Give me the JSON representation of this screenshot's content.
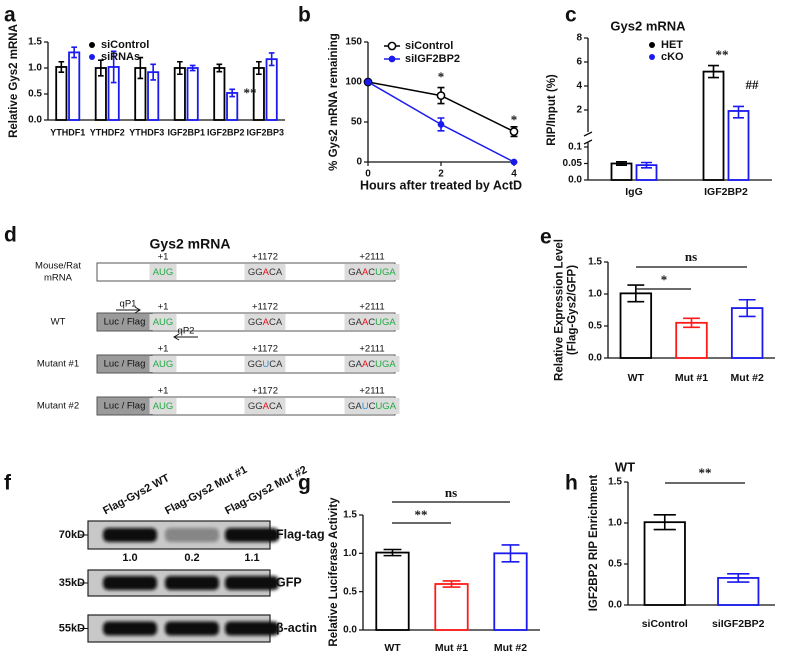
{
  "chart_data": [
    {
      "type": "bar",
      "panel_label": "a",
      "ylabel": "Relative Gys2 mRNA",
      "categories": [
        "YTHDF1",
        "YTHDF2",
        "YTHDF3",
        "IGF2BP1",
        "IGF2BP2",
        "IGF2BP3"
      ],
      "series": [
        {
          "name": "siControl",
          "color": "#000000",
          "values": [
            1.02,
            1.0,
            1.0,
            1.0,
            1.0,
            1.0
          ],
          "errors": [
            0.1,
            0.15,
            0.2,
            0.12,
            0.07,
            0.12
          ]
        },
        {
          "name": "siRNAs",
          "color": "#1a1aee",
          "values": [
            1.3,
            1.02,
            0.92,
            1.0,
            0.52,
            1.17
          ],
          "errors": [
            0.1,
            0.3,
            0.15,
            0.05,
            0.07,
            0.12
          ]
        }
      ],
      "ylim": [
        0,
        1.5
      ],
      "yticks": [
        {
          "value": 0,
          "label": "0.0"
        },
        0.5,
        {
          "value": 1,
          "label": "1.0"
        },
        1.5
      ],
      "annotations": [
        "**"
      ]
    },
    {
      "type": "line",
      "panel_label": "b",
      "ylabel": "% Gys2 mRNA remaining",
      "xlabel": "Hours after treated by ActD",
      "x": [
        0,
        2,
        4
      ],
      "series": [
        {
          "name": "siControl",
          "color": "#000000",
          "marker": "open",
          "values": [
            100,
            83,
            38
          ],
          "errors": [
            0,
            10,
            6
          ]
        },
        {
          "name": "siIGF2BP2",
          "color": "#1a1aee",
          "marker": "filled",
          "values": [
            100,
            47,
            0
          ],
          "errors": [
            0,
            8,
            0
          ]
        }
      ],
      "xlim": [
        0,
        4
      ],
      "xticks": [
        0,
        2,
        4
      ],
      "ylim": [
        0,
        150
      ],
      "yticks": [
        0,
        50,
        100,
        150
      ],
      "annotations": [
        "*",
        "*"
      ]
    },
    {
      "type": "bar",
      "panel_label": "c",
      "title": "Gys2 mRNA",
      "ylabel": "RIP/Input (%)",
      "categories": [
        "IgG",
        "IGF2BP2"
      ],
      "series": [
        {
          "name": "HET",
          "color": "#000000",
          "values": [
            0.05,
            5.2
          ],
          "errors": [
            0.005,
            0.5
          ]
        },
        {
          "name": "cKO",
          "color": "#1a1aee",
          "values": [
            0.045,
            1.95
          ],
          "errors": [
            0.008,
            0.35
          ]
        }
      ],
      "ylim": [
        0,
        8
      ],
      "y_break": [
        0.1,
        2
      ],
      "yticks": [
        {
          "value": 0,
          "label": "0.0"
        },
        0.05,
        0.1,
        2,
        4,
        6,
        8
      ],
      "annotations": [
        "**",
        "##"
      ]
    },
    {
      "type": "bar",
      "panel_label": "e",
      "ylabel": [
        "Relative Expression Level",
        "(Flag-Gys2/GFP)"
      ],
      "categories": [
        "WT",
        "Mut #1",
        "Mut #2"
      ],
      "values": [
        1.01,
        0.55,
        0.78
      ],
      "errors": [
        0.13,
        0.07,
        0.13
      ],
      "colors": [
        "#000000",
        "#ff1a1a",
        "#1a1aee"
      ],
      "ylim": [
        0,
        1.5
      ],
      "yticks": [
        {
          "value": 0,
          "label": "0.0"
        },
        0.5,
        {
          "value": 1,
          "label": "1.0"
        },
        1.5
      ],
      "annotations": [
        "ns",
        "*"
      ]
    },
    {
      "type": "bar",
      "panel_label": "g",
      "ylabel": "Relative Luciferase Activity",
      "categories": [
        "WT",
        "Mut #1",
        "Mut #2"
      ],
      "values": [
        1.01,
        0.6,
        1.0
      ],
      "errors": [
        0.04,
        0.04,
        0.11
      ],
      "colors": [
        "#000000",
        "#ff1a1a",
        "#1a1aee"
      ],
      "ylim": [
        0,
        1.5
      ],
      "yticks": [
        {
          "value": 0,
          "label": "0.0"
        },
        0.5,
        {
          "value": 1,
          "label": "1.0"
        },
        1.5
      ],
      "annotations": [
        "ns",
        "**"
      ]
    },
    {
      "type": "bar",
      "panel_label": "h",
      "subtitle": "WT",
      "ylabel": "IGF2BP2 RIP Enrichment",
      "categories": [
        "siControl",
        "siIGF2BP2"
      ],
      "values": [
        1.01,
        0.33
      ],
      "errors": [
        0.09,
        0.05
      ],
      "colors": [
        "#000000",
        "#1a1aee"
      ],
      "ylim": [
        0,
        1.5
      ],
      "yticks": [
        {
          "value": 0,
          "label": "0.0"
        },
        0.5,
        {
          "value": 1,
          "label": "1.0"
        },
        1.5
      ],
      "annotations": [
        "**"
      ]
    }
  ],
  "diagram": {
    "panel_label": "d",
    "title": "Gys2 mRNA",
    "primers": [
      "qP1",
      "qP2"
    ],
    "rows": [
      {
        "label": [
          "Mouse/Rat",
          "mRNA"
        ],
        "positions": [
          "+1",
          "+1172",
          "+2111"
        ],
        "sites": [
          [
            {
              "text": "AUG",
              "color": "#22aa44"
            }
          ],
          [
            {
              "text": "GG"
            },
            {
              "text": "A",
              "color": "#e8101c"
            },
            {
              "text": "CA"
            }
          ],
          [
            {
              "text": "GA"
            },
            {
              "text": "A",
              "color": "#e8101c"
            },
            {
              "text": "C"
            },
            {
              "text": "UGA",
              "color": "#22aa44"
            }
          ]
        ]
      },
      {
        "label": [
          "WT"
        ],
        "tag": "Luc / Flag",
        "positions": [
          "+1",
          "+1172",
          "+2111"
        ],
        "sites": [
          [
            {
              "text": "AUG",
              "color": "#22aa44"
            }
          ],
          [
            {
              "text": "GG"
            },
            {
              "text": "A",
              "color": "#e8101c"
            },
            {
              "text": "CA"
            }
          ],
          [
            {
              "text": "GA"
            },
            {
              "text": "A",
              "color": "#e8101c"
            },
            {
              "text": "C"
            },
            {
              "text": "UGA",
              "color": "#22aa44"
            }
          ]
        ]
      },
      {
        "label": [
          "Mutant #1"
        ],
        "tag": "Luc / Flag",
        "positions": [
          "+1",
          "+1172",
          "+2111"
        ],
        "sites": [
          [
            {
              "text": "AUG",
              "color": "#22aa44"
            }
          ],
          [
            {
              "text": "GG"
            },
            {
              "text": "U",
              "color": "#2a8fd8"
            },
            {
              "text": "CA"
            }
          ],
          [
            {
              "text": "GA"
            },
            {
              "text": "A",
              "color": "#e8101c"
            },
            {
              "text": "C"
            },
            {
              "text": "UGA",
              "color": "#22aa44"
            }
          ]
        ]
      },
      {
        "label": [
          "Mutant #2"
        ],
        "tag": "Luc / Flag",
        "positions": [
          "+1",
          "+1172",
          "+2111"
        ],
        "sites": [
          [
            {
              "text": "AUG",
              "color": "#22aa44"
            }
          ],
          [
            {
              "text": "GG"
            },
            {
              "text": "A",
              "color": "#e8101c"
            },
            {
              "text": "CA"
            }
          ],
          [
            {
              "text": "GA"
            },
            {
              "text": "U",
              "color": "#2a8fd8"
            },
            {
              "text": "C"
            },
            {
              "text": "UGA",
              "color": "#22aa44"
            }
          ]
        ]
      }
    ]
  },
  "blot": {
    "panel_label": "f",
    "lanes": [
      "Flag-Gys2 WT",
      "Flag-Gys2 Mut #1",
      "Flag-Gys2 Mut #2"
    ],
    "bands": [
      {
        "label": "Flag-tag",
        "marker": "70kD",
        "quant": [
          "1.0",
          "0.2",
          "1.1"
        ]
      },
      {
        "label": "GFP",
        "marker": "35kD"
      },
      {
        "label": "β-actin",
        "marker": "55kD"
      }
    ]
  }
}
